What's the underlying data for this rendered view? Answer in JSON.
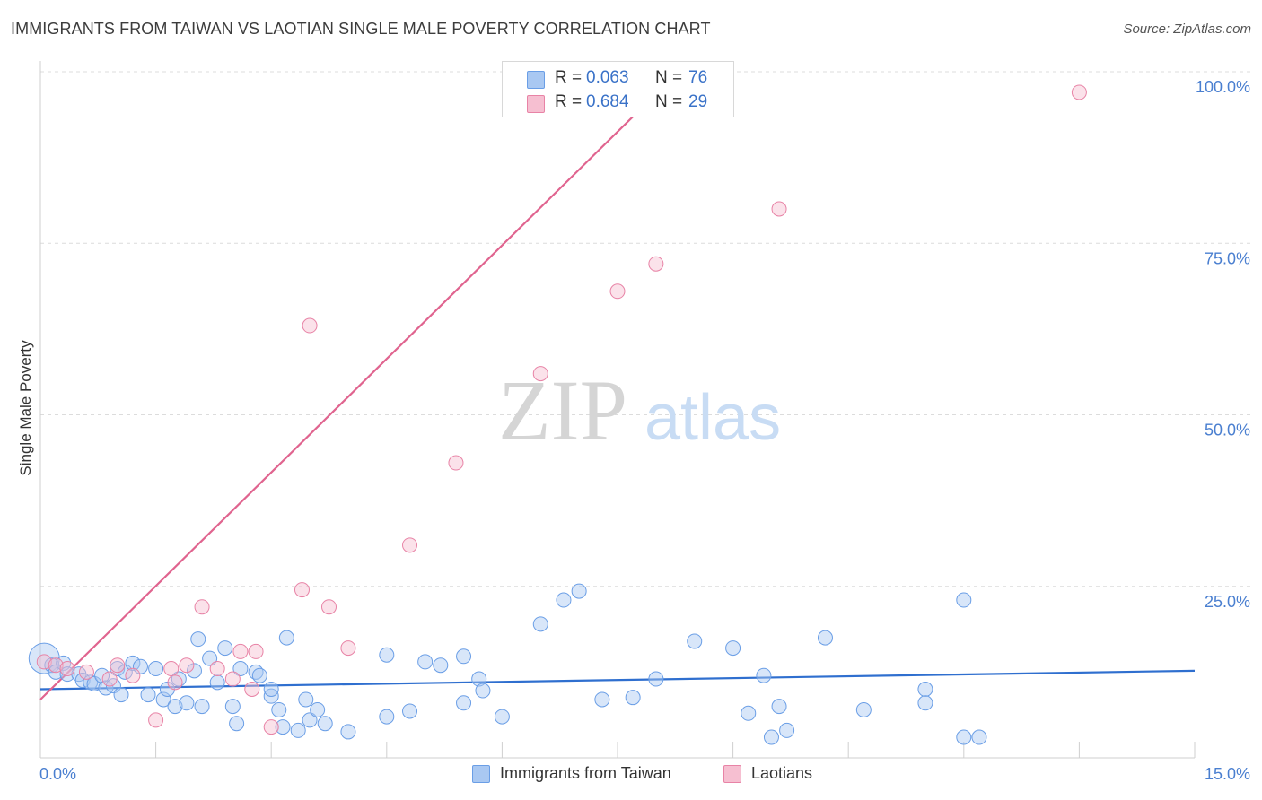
{
  "title": "IMMIGRANTS FROM TAIWAN VS LAOTIAN SINGLE MALE POVERTY CORRELATION CHART",
  "source": "Source: ZipAtlas.com",
  "watermark": {
    "zip": "ZIP",
    "atlas": "atlas"
  },
  "legend": {
    "r_label": "R = ",
    "n_label": "N = ",
    "series": [
      {
        "name": "Immigrants from Taiwan",
        "r": "0.063",
        "n": "76",
        "fill": "#a9c8f2",
        "stroke": "#6a9ee6"
      },
      {
        "name": "Laotians",
        "r": "0.684",
        "n": "29",
        "fill": "#f6bfd1",
        "stroke": "#e883a6"
      }
    ]
  },
  "chart_data": {
    "type": "scatter",
    "title": "IMMIGRANTS FROM TAIWAN VS LAOTIAN SINGLE MALE POVERTY CORRELATION CHART",
    "xlabel": "",
    "ylabel": "Single Male Poverty",
    "xlim": [
      0,
      15
    ],
    "ylim": [
      0,
      100
    ],
    "x_tick_labels": [
      "0.0%",
      "15.0%"
    ],
    "y_ticks": [
      25,
      50,
      75,
      100
    ],
    "y_tick_labels": [
      "25.0%",
      "50.0%",
      "75.0%",
      "100.0%"
    ],
    "grid": true,
    "series": [
      {
        "name": "Immigrants from Taiwan",
        "color": "#6a9ee6",
        "trend": {
          "x": [
            0,
            15
          ],
          "y": [
            10.0,
            12.7
          ]
        },
        "points": [
          [
            0.05,
            14.5
          ],
          [
            0.15,
            13.5
          ],
          [
            0.2,
            12.5
          ],
          [
            0.3,
            13.8
          ],
          [
            0.35,
            12.2
          ],
          [
            0.5,
            12.2
          ],
          [
            0.55,
            11.3
          ],
          [
            0.65,
            11.0
          ],
          [
            0.7,
            10.8
          ],
          [
            0.8,
            12.0
          ],
          [
            0.85,
            10.2
          ],
          [
            0.95,
            10.5
          ],
          [
            1.0,
            13.0
          ],
          [
            1.05,
            9.2
          ],
          [
            1.1,
            12.5
          ],
          [
            1.2,
            13.8
          ],
          [
            1.3,
            13.3
          ],
          [
            1.4,
            9.2
          ],
          [
            1.5,
            13.0
          ],
          [
            1.6,
            8.5
          ],
          [
            1.65,
            10.0
          ],
          [
            1.75,
            7.5
          ],
          [
            1.8,
            11.5
          ],
          [
            1.9,
            8.0
          ],
          [
            2.0,
            12.7
          ],
          [
            2.05,
            17.3
          ],
          [
            2.1,
            7.5
          ],
          [
            2.2,
            14.5
          ],
          [
            2.3,
            11.0
          ],
          [
            2.4,
            16.0
          ],
          [
            2.5,
            7.5
          ],
          [
            2.55,
            5.0
          ],
          [
            2.6,
            13.0
          ],
          [
            2.8,
            12.5
          ],
          [
            2.85,
            12.0
          ],
          [
            3.0,
            9.0
          ],
          [
            3.0,
            10.0
          ],
          [
            3.1,
            7.0
          ],
          [
            3.15,
            4.5
          ],
          [
            3.2,
            17.5
          ],
          [
            3.35,
            4.0
          ],
          [
            3.45,
            8.5
          ],
          [
            3.5,
            5.5
          ],
          [
            3.6,
            7.0
          ],
          [
            3.7,
            5.0
          ],
          [
            4.0,
            3.8
          ],
          [
            4.5,
            6.0
          ],
          [
            4.5,
            15.0
          ],
          [
            4.8,
            6.8
          ],
          [
            5.0,
            14.0
          ],
          [
            5.2,
            13.5
          ],
          [
            5.5,
            8.0
          ],
          [
            5.5,
            14.8
          ],
          [
            5.7,
            11.5
          ],
          [
            5.75,
            9.8
          ],
          [
            6.0,
            6.0
          ],
          [
            6.5,
            19.5
          ],
          [
            6.8,
            23.0
          ],
          [
            7.0,
            24.3
          ],
          [
            7.3,
            8.5
          ],
          [
            7.7,
            8.8
          ],
          [
            8.0,
            11.5
          ],
          [
            8.5,
            17.0
          ],
          [
            9.0,
            16.0
          ],
          [
            9.2,
            6.5
          ],
          [
            9.4,
            12.0
          ],
          [
            9.5,
            3.0
          ],
          [
            9.6,
            7.5
          ],
          [
            9.7,
            4.0
          ],
          [
            10.2,
            17.5
          ],
          [
            10.7,
            7.0
          ],
          [
            11.5,
            10.0
          ],
          [
            11.5,
            8.0
          ],
          [
            12.0,
            23.0
          ],
          [
            12.0,
            3.0
          ],
          [
            12.2,
            3.0
          ]
        ]
      },
      {
        "name": "Laotians",
        "color": "#e883a6",
        "trend": {
          "x": [
            0,
            15
          ],
          "y": [
            8.5,
            174
          ]
        },
        "points": [
          [
            0.05,
            14.0
          ],
          [
            0.2,
            13.5
          ],
          [
            0.35,
            13.0
          ],
          [
            0.6,
            12.5
          ],
          [
            0.9,
            11.5
          ],
          [
            1.0,
            13.5
          ],
          [
            1.2,
            12.0
          ],
          [
            1.5,
            5.5
          ],
          [
            1.7,
            13.0
          ],
          [
            1.75,
            11.0
          ],
          [
            1.9,
            13.5
          ],
          [
            2.1,
            22.0
          ],
          [
            2.3,
            13.0
          ],
          [
            2.5,
            11.5
          ],
          [
            2.6,
            15.5
          ],
          [
            2.75,
            10.0
          ],
          [
            2.8,
            15.5
          ],
          [
            3.0,
            4.5
          ],
          [
            3.4,
            24.5
          ],
          [
            3.5,
            63.0
          ],
          [
            3.75,
            22.0
          ],
          [
            4.0,
            16.0
          ],
          [
            4.8,
            31.0
          ],
          [
            5.4,
            43.0
          ],
          [
            6.5,
            56.0
          ],
          [
            7.5,
            68.0
          ],
          [
            8.0,
            72.0
          ],
          [
            9.6,
            80.0
          ],
          [
            13.5,
            97.0
          ]
        ]
      }
    ]
  }
}
